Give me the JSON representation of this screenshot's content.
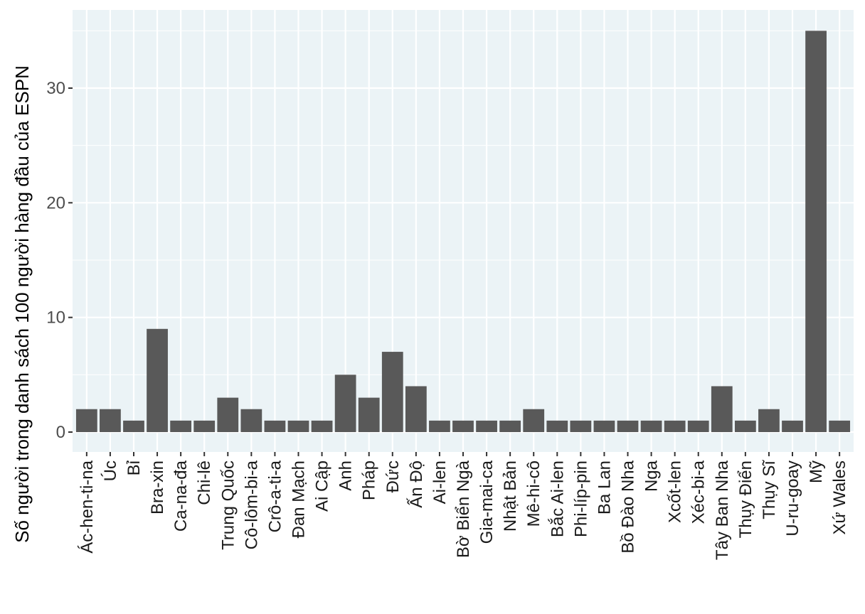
{
  "chart_data": {
    "type": "bar",
    "ylabel": "Số người trong danh sách 100 người hàng đầu của ESPN",
    "xlabel": "",
    "ylim": [
      0,
      36.7
    ],
    "yticks": [
      0,
      10,
      20,
      30
    ],
    "grid": true,
    "categories": [
      "Ác-hen-ti-na",
      "Úc",
      "Bỉ",
      "Bra-xin",
      "Ca-na-đa",
      "Chi-lê",
      "Trung Quốc",
      "Cô-lôm-bi-a",
      "Crô-a-ti-a",
      "Đan Mạch",
      "Ai Cập",
      "Anh",
      "Pháp",
      "Đức",
      "Ấn Độ",
      "Ai-len",
      "Bờ Biển Ngà",
      "Gia-mai-ca",
      "Nhật Bản",
      "Mê-hi-cô",
      "Bắc Ai-len",
      "Phi-líp-pin",
      "Ba Lan",
      "Bồ Đào Nha",
      "Nga",
      "Xcốt-len",
      "Xéc-bi-a",
      "Tây Ban Nha",
      "Thụy Điển",
      "Thụy Sĩ",
      "U-ru-goay",
      "Mỹ",
      "Xứ Wales"
    ],
    "values": [
      2,
      2,
      1,
      9,
      1,
      1,
      3,
      2,
      1,
      1,
      1,
      5,
      3,
      7,
      4,
      1,
      1,
      1,
      1,
      2,
      1,
      1,
      1,
      1,
      1,
      1,
      1,
      4,
      1,
      2,
      1,
      35,
      1
    ],
    "colors": {
      "panel": "#ebf3f6",
      "grid": "#ffffff",
      "bar": "#595959",
      "tick": "#333333"
    }
  }
}
